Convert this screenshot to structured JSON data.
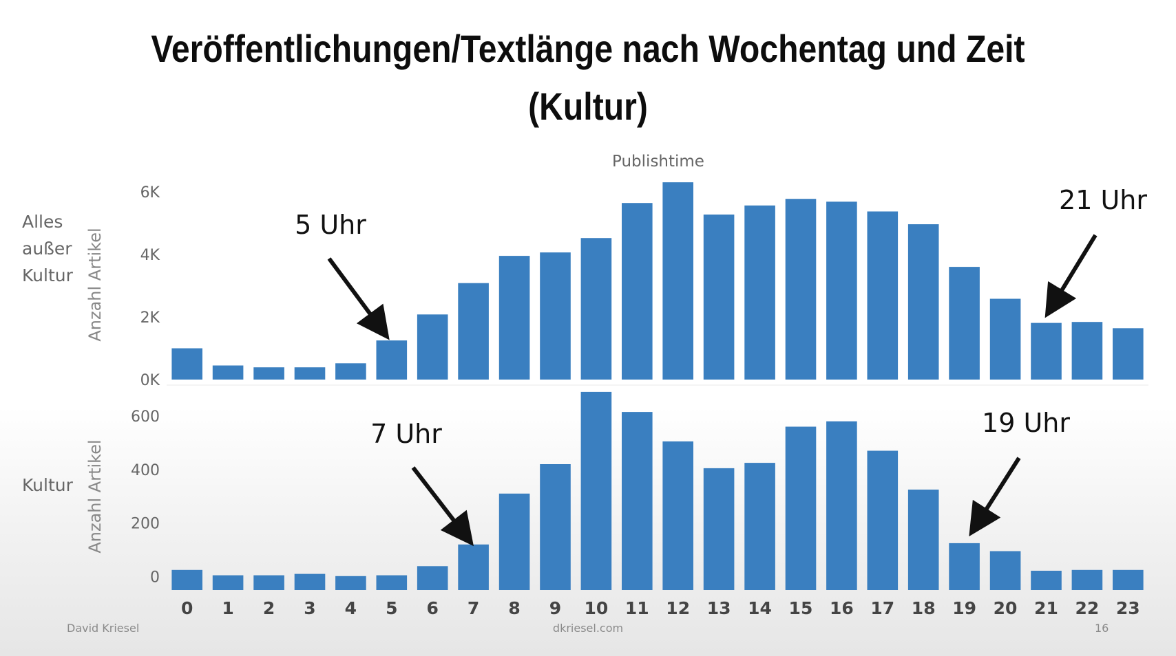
{
  "slide": {
    "title_line1": "Veröffentlichungen/Textlänge nach Wochentag und Zeit",
    "title_line2": "(Kultur)",
    "footer_left": "David Kriesel",
    "footer_center": "dkriesel.com",
    "footer_right": "16"
  },
  "chart_data": {
    "type": "bar",
    "title": "Publishtime",
    "bar_color": "#3a7fc0",
    "categories": [
      "0",
      "1",
      "2",
      "3",
      "4",
      "5",
      "6",
      "7",
      "8",
      "9",
      "10",
      "11",
      "12",
      "13",
      "14",
      "15",
      "16",
      "17",
      "18",
      "19",
      "20",
      "21",
      "22",
      "23"
    ],
    "panels": [
      {
        "row_label": "Alles außer Kultur",
        "ylabel": "Anzahl Artikel",
        "yticks": [
          "0K",
          "2K",
          "4K",
          "6K"
        ],
        "ytick_values": [
          0,
          2000,
          4000,
          6000
        ],
        "ylim": [
          0,
          6500
        ],
        "values": [
          1000,
          450,
          390,
          390,
          520,
          1250,
          2080,
          3080,
          3950,
          4060,
          4520,
          5640,
          6300,
          5270,
          5560,
          5770,
          5680,
          5370,
          4960,
          3600,
          2580,
          1810,
          1840,
          1640
        ],
        "annotations": [
          {
            "text": "5 Uhr",
            "category": "5"
          },
          {
            "text": "21 Uhr",
            "category": "21"
          }
        ]
      },
      {
        "row_label": "Kultur",
        "ylabel": "Anzahl Artikel",
        "yticks": [
          "0",
          "200",
          "400",
          "600"
        ],
        "ytick_values": [
          0,
          200,
          400,
          600
        ],
        "ylim": [
          -50,
          700
        ],
        "values": [
          25,
          5,
          5,
          10,
          2,
          5,
          39,
          120,
          310,
          420,
          690,
          615,
          505,
          405,
          425,
          560,
          580,
          470,
          325,
          125,
          95,
          22,
          25,
          25
        ],
        "annotations": [
          {
            "text": "7 Uhr",
            "category": "7"
          },
          {
            "text": "19 Uhr",
            "category": "19"
          }
        ]
      }
    ]
  }
}
